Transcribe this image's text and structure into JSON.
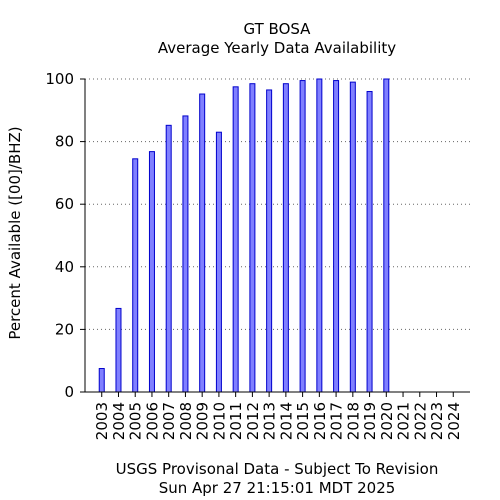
{
  "chart_data": {
    "type": "bar",
    "title": "GT BOSA",
    "subtitle": "Average Yearly Data Availability",
    "xlabel": "",
    "ylabel": "Percent Available ([00]/BHZ)",
    "footer_line1": "USGS Provisonal Data - Subject To Revision",
    "footer_line2": "Sun Apr 27 21:15:01 MDT 2025",
    "ylim": [
      0,
      100
    ],
    "yticks": [
      0,
      20,
      40,
      60,
      80,
      100
    ],
    "grid": true,
    "categories": [
      "2003",
      "2004",
      "2005",
      "2006",
      "2007",
      "2008",
      "2009",
      "2010",
      "2011",
      "2012",
      "2013",
      "2014",
      "2015",
      "2016",
      "2017",
      "2018",
      "2019",
      "2020",
      "2021",
      "2022",
      "2023",
      "2024"
    ],
    "values": [
      7.5,
      26.7,
      74.5,
      76.8,
      85.2,
      88.2,
      95.2,
      83.0,
      97.5,
      98.5,
      96.5,
      98.5,
      99.5,
      100,
      99.5,
      99.0,
      96.0,
      100,
      null,
      null,
      null,
      null
    ],
    "bar_color": "#8080ff",
    "bar_edge_color": "#0000cc"
  }
}
